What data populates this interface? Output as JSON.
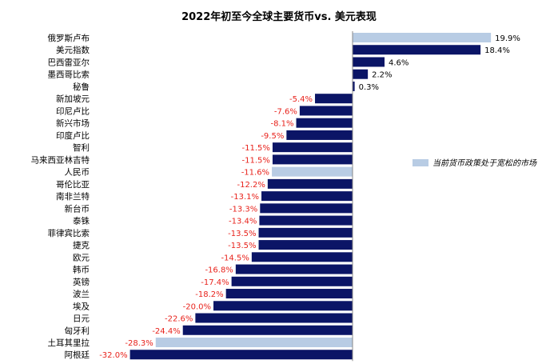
{
  "chart_data": {
    "type": "bar",
    "orientation": "horizontal",
    "title": "2022年初至今全球主要货币vs. 美元表现",
    "xlim": [
      -32,
      19.9
    ],
    "value_suffix": "%",
    "categories": [
      "俄罗斯卢布",
      "美元指数",
      "巴西雷亚尔",
      "墨西哥比索",
      "秘鲁",
      "新加坡元",
      "印尼卢比",
      "新兴市场",
      "印度卢比",
      "智利",
      "马来西亚林吉特",
      "人民币",
      "哥伦比亚",
      "南非兰特",
      "新台币",
      "泰铢",
      "菲律宾比索",
      "捷克",
      "欧元",
      "韩币",
      "英镑",
      "波兰",
      "埃及",
      "日元",
      "匈牙利",
      "土耳其里拉",
      "阿根廷"
    ],
    "values": [
      19.9,
      18.4,
      4.6,
      2.2,
      0.3,
      -5.4,
      -7.6,
      -8.1,
      -9.5,
      -11.5,
      -11.5,
      -11.6,
      -12.2,
      -13.1,
      -13.3,
      -13.4,
      -13.5,
      -13.5,
      -14.5,
      -16.8,
      -17.4,
      -18.2,
      -20.0,
      -22.6,
      -24.4,
      -28.3,
      -32.0
    ],
    "data_labels": [
      "19.9%",
      "18.4%",
      "4.6%",
      "2.2%",
      "0.3%",
      "-5.4%",
      "-7.6%",
      "-8.1%",
      "-9.5%",
      "-11.5%",
      "-11.5%",
      "-11.6%",
      "-12.2%",
      "-13.1%",
      "-13.3%",
      "-13.4%",
      "-13.5%",
      "-13.5%",
      "-14.5%",
      "-16.8%",
      "-17.4%",
      "-18.2%",
      "-20.0%",
      "-22.6%",
      "-24.4%",
      "-28.3%",
      "-32.0%"
    ],
    "highlighted": [
      true,
      false,
      false,
      false,
      false,
      false,
      false,
      false,
      false,
      false,
      false,
      true,
      false,
      false,
      false,
      false,
      false,
      false,
      false,
      false,
      false,
      false,
      false,
      false,
      false,
      true,
      false
    ],
    "legend": {
      "label": "当前货币政策处于宽松的市场",
      "placement": "right"
    },
    "colors": {
      "default_bar": "#0b1566",
      "highlight_bar": "#b8cce4",
      "negative_label": "#e8231c",
      "positive_label": "#000000"
    },
    "grid": false
  }
}
